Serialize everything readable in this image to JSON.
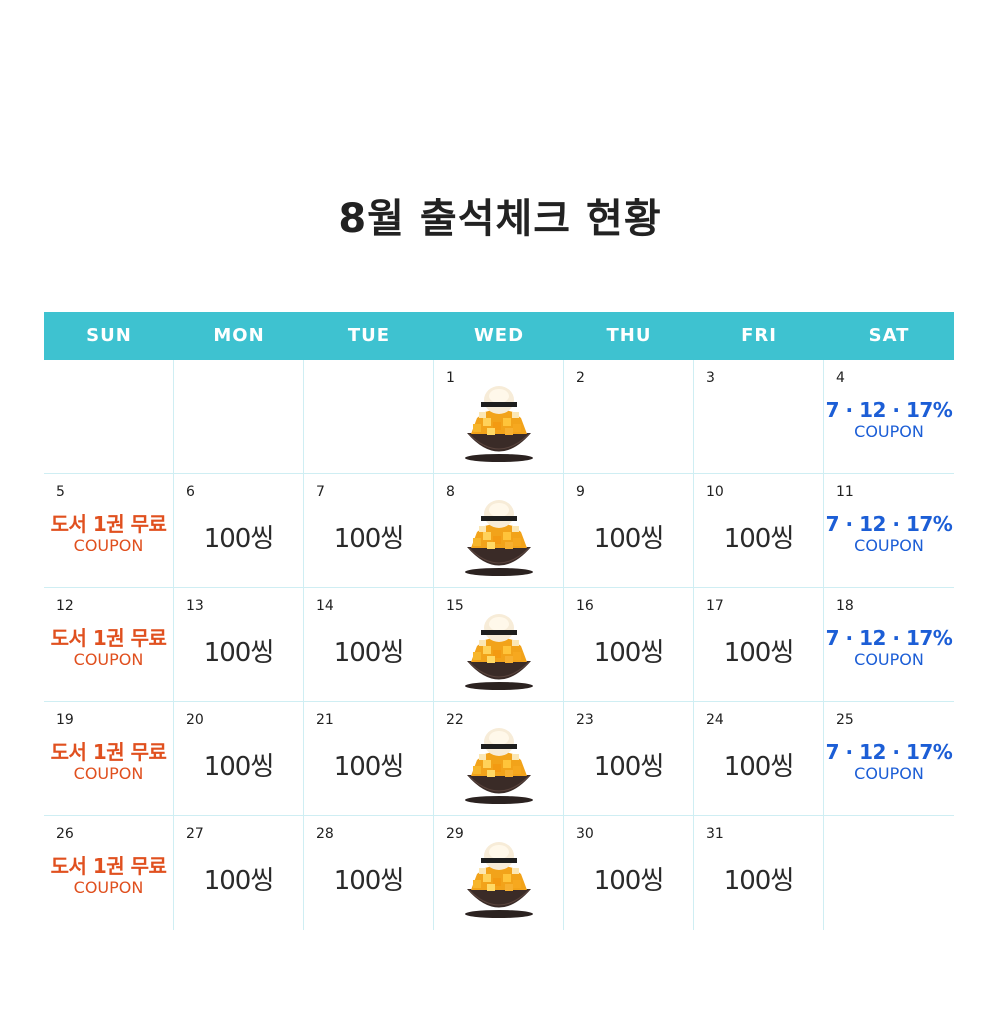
{
  "title": "8월 출석체크 현황",
  "colors": {
    "header_bg": "#3ec2d0",
    "coupon_orange": "#e0501f",
    "coupon_blue": "#1c5ed6",
    "grid_line": "#cfeef3"
  },
  "weekdays": [
    "SUN",
    "MON",
    "TUE",
    "WED",
    "THU",
    "FRI",
    "SAT"
  ],
  "rewards": {
    "points": "100씽",
    "book_coupon": "도서 1권 무료",
    "discount_coupon": "7 · 12 · 17%",
    "coupon_label": "COUPON",
    "bingsu_icon": "mango-bingsu-image"
  },
  "days": [
    {
      "day": "",
      "reward": "none"
    },
    {
      "day": "",
      "reward": "none"
    },
    {
      "day": "",
      "reward": "none"
    },
    {
      "day": "1",
      "reward": "bingsu"
    },
    {
      "day": "2",
      "reward": "none"
    },
    {
      "day": "3",
      "reward": "none"
    },
    {
      "day": "4",
      "reward": "discount"
    },
    {
      "day": "5",
      "reward": "book"
    },
    {
      "day": "6",
      "reward": "points"
    },
    {
      "day": "7",
      "reward": "points"
    },
    {
      "day": "8",
      "reward": "bingsu"
    },
    {
      "day": "9",
      "reward": "points"
    },
    {
      "day": "10",
      "reward": "points"
    },
    {
      "day": "11",
      "reward": "discount"
    },
    {
      "day": "12",
      "reward": "book"
    },
    {
      "day": "13",
      "reward": "points"
    },
    {
      "day": "14",
      "reward": "points"
    },
    {
      "day": "15",
      "reward": "bingsu"
    },
    {
      "day": "16",
      "reward": "points"
    },
    {
      "day": "17",
      "reward": "points"
    },
    {
      "day": "18",
      "reward": "discount"
    },
    {
      "day": "19",
      "reward": "book"
    },
    {
      "day": "20",
      "reward": "points"
    },
    {
      "day": "21",
      "reward": "points"
    },
    {
      "day": "22",
      "reward": "bingsu"
    },
    {
      "day": "23",
      "reward": "points"
    },
    {
      "day": "24",
      "reward": "points"
    },
    {
      "day": "25",
      "reward": "discount"
    },
    {
      "day": "26",
      "reward": "book"
    },
    {
      "day": "27",
      "reward": "points"
    },
    {
      "day": "28",
      "reward": "points"
    },
    {
      "day": "29",
      "reward": "bingsu"
    },
    {
      "day": "30",
      "reward": "points"
    },
    {
      "day": "31",
      "reward": "points"
    },
    {
      "day": "",
      "reward": "none"
    }
  ]
}
